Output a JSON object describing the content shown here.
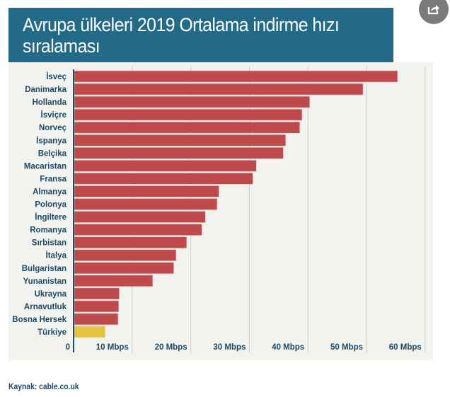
{
  "header": {
    "title": "Avrupa ülkeleri 2019 Ortalama indirme hızı sıralaması",
    "title_line1": "Avrupa ülkeleri 2019 Ortalama indirme hızı",
    "title_line2": "sıralaması",
    "share_icon": "share-icon"
  },
  "footer": {
    "source": "Kaynak: cable.co.uk"
  },
  "colors": {
    "title_bg": "#236a88",
    "bar_default": "#bf4a4c",
    "bar_highlight": "#e8c245",
    "panel_bg": "#f2f2ee",
    "axis": "#1d4a66",
    "grid": "#c5cfd4",
    "label": "#1d4a66"
  },
  "chart_data": {
    "type": "bar",
    "orientation": "horizontal",
    "title": "Avrupa ülkeleri 2019 Ortalama indirme hızı sıralaması",
    "xlabel": "",
    "ylabel": "",
    "xlim": [
      0,
      62
    ],
    "unit": "Mbps",
    "grid": true,
    "legend": "none",
    "x_ticks": [
      0,
      10,
      20,
      30,
      40,
      50,
      60
    ],
    "x_tick_labels": [
      "0",
      "10 Mbps",
      "20 Mbps",
      "30 Mbps",
      "40 Mbps",
      "50 Mbps",
      "60 Mbps"
    ],
    "categories": [
      "İsveç",
      "Danimarka",
      "Hollanda",
      "İsviçre",
      "Norveç",
      "İspanya",
      "Belçika",
      "Macaristan",
      "Fransa",
      "Almanya",
      "Polonya",
      "İngiltere",
      "Romanya",
      "Sırbistan",
      "İtalya",
      "Bulgaristan",
      "Yunanistan",
      "Ukrayna",
      "Arnavutluk",
      "Bosna Hersek",
      "Türkiye"
    ],
    "values": [
      55.3,
      49.4,
      40.3,
      39.0,
      38.6,
      36.2,
      35.8,
      31.2,
      30.6,
      24.8,
      24.5,
      22.5,
      21.9,
      19.3,
      17.5,
      17.1,
      13.5,
      7.8,
      7.7,
      7.6,
      5.4
    ],
    "highlight": [
      "Türkiye"
    ],
    "source": "Kaynak: cable.co.uk"
  }
}
